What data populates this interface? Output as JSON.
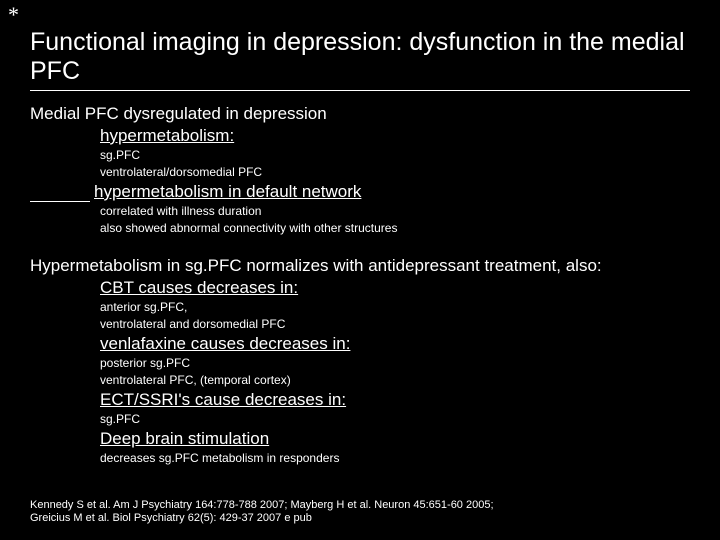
{
  "asterisk": "*",
  "title": "Functional imaging in depression: dysfunction in the medial PFC",
  "section1": {
    "heading": "Medial PFC dysregulated in depression",
    "sub1": "hypermetabolism:",
    "sub1_detail_a": "sg.PFC",
    "sub1_detail_b": "ventrolateral/dorsomedial PFC",
    "sub2_run": "hypermetabolism in default network",
    "sub2_detail_a": "correlated with illness duration",
    "sub2_detail_b": "also showed abnormal connectivity with other structures"
  },
  "section2": {
    "heading": "Hypermetabolism in sg.PFC normalizes with antidepressant treatment,  also:",
    "cbt": "CBT causes decreases in:",
    "cbt_detail_a": "anterior sg.PFC,",
    "cbt_detail_b": "ventrolateral and dorsomedial PFC",
    "ven": "venlafaxine causes decreases in:",
    "ven_detail_a": "posterior sg.PFC",
    "ven_detail_b": "ventrolateral PFC, (temporal cortex)",
    "ect": "ECT/SSRI's cause decreases in:",
    "ect_detail_a": "sg.PFC",
    "dbs": "Deep brain stimulation",
    "dbs_detail_a": "decreases sg.PFC metabolism in responders"
  },
  "citation_line1": "Kennedy S et al. Am J Psychiatry 164:778-788 2007; Mayberg H et al. Neuron 45:651-60 2005;",
  "citation_line2": "Greicius M et al. Biol Psychiatry 62(5): 429-37 2007 e pub"
}
